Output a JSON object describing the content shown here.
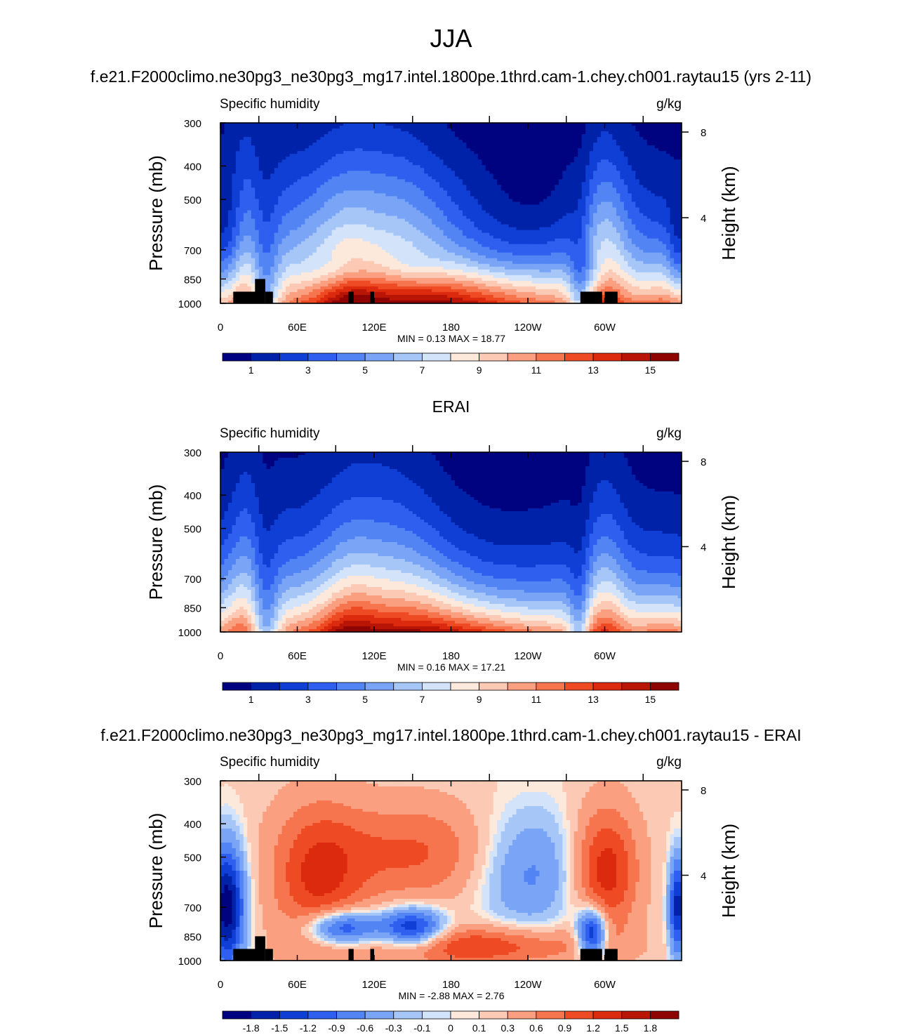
{
  "page": {
    "title": "JJA",
    "panel1_title": "f.e21.F2000climo.ne30pg3_ne30pg3_mg17.intel.1800pe.1thrd.cam-1.chey.ch001.raytau15 (yrs 2-11)",
    "panel2_title": "ERAI",
    "panel3_title": "f.e21.F2000climo.ne30pg3_ne30pg3_mg17.intel.1800pe.1thrd.cam-1.chey.ch001.raytau15 - ERAI"
  },
  "colors": {
    "abs_palette": [
      "#00037f",
      "#0022a9",
      "#0f3fd4",
      "#2f5fee",
      "#5284f3",
      "#7aa5f6",
      "#a7c6f8",
      "#d2e3fa",
      "#fde8dc",
      "#fcc9b4",
      "#fa9f80",
      "#f6754f",
      "#ee4b24",
      "#dc2a0f",
      "#b91507",
      "#8e0400"
    ],
    "diff_palette": [
      "#00037f",
      "#0022a9",
      "#0f3fd4",
      "#2f5fee",
      "#5284f3",
      "#7aa5f6",
      "#a7c6f8",
      "#d2e3fa",
      "#fde8dc",
      "#fcc9b4",
      "#fa9f80",
      "#f6754f",
      "#ee4b24",
      "#dc2a0f",
      "#b91507",
      "#8e0400"
    ]
  },
  "chart_data": [
    {
      "type": "heatmap",
      "title": "f.e21.F2000climo.ne30pg3_ne30pg3_mg17.intel.1800pe.1thrd.cam-1.chey.ch001.raytau15 (yrs 2-11)",
      "left_label": "Specific humidity",
      "right_label": "g/kg",
      "ylabel": "Pressure (mb)",
      "ylabel_right": "Height (km)",
      "x_ticks": [
        "0",
        "60E",
        "120E",
        "180",
        "120W",
        "60W"
      ],
      "y_ticks": [
        "300",
        "400",
        "500",
        "700",
        "850",
        "1000"
      ],
      "y_right_ticks": [
        "8",
        "4"
      ],
      "stats": {
        "min_label": "MIN =",
        "min": "0.13",
        "max_label": "MAX =",
        "max": "18.77"
      },
      "colorbar_labels": [
        "1",
        "3",
        "5",
        "7",
        "9",
        "11",
        "13",
        "15"
      ],
      "field": "model",
      "value_range": [
        0.13,
        18.77
      ]
    },
    {
      "type": "heatmap",
      "title": "ERAI",
      "left_label": "Specific humidity",
      "right_label": "g/kg",
      "ylabel": "Pressure (mb)",
      "ylabel_right": "Height (km)",
      "x_ticks": [
        "0",
        "60E",
        "120E",
        "180",
        "120W",
        "60W"
      ],
      "y_ticks": [
        "300",
        "400",
        "500",
        "700",
        "850",
        "1000"
      ],
      "y_right_ticks": [
        "8",
        "4"
      ],
      "stats": {
        "min_label": "MIN =",
        "min": "0.16",
        "max_label": "MAX =",
        "max": "17.21"
      },
      "colorbar_labels": [
        "1",
        "3",
        "5",
        "7",
        "9",
        "11",
        "13",
        "15"
      ],
      "field": "obs",
      "value_range": [
        0.16,
        17.21
      ]
    },
    {
      "type": "heatmap",
      "title": "f.e21.F2000climo.ne30pg3_ne30pg3_mg17.intel.1800pe.1thrd.cam-1.chey.ch001.raytau15 - ERAI",
      "left_label": "Specific humidity",
      "right_label": "g/kg",
      "ylabel": "Pressure (mb)",
      "ylabel_right": "Height (km)",
      "x_ticks": [
        "0",
        "60E",
        "120E",
        "180",
        "120W",
        "60W"
      ],
      "y_ticks": [
        "300",
        "400",
        "500",
        "700",
        "850",
        "1000"
      ],
      "y_right_ticks": [
        "8",
        "4"
      ],
      "stats": {
        "min_label": "MIN =",
        "min": "-2.88",
        "max_label": "MAX =",
        "max": "2.76"
      },
      "colorbar_labels": [
        "-1.8",
        "-1.5",
        "-1.2",
        "-0.9",
        "-0.6",
        "-0.3",
        "-0.1",
        "0",
        "0.1",
        "0.3",
        "0.6",
        "0.9",
        "1.2",
        "1.5",
        "1.8"
      ],
      "field": "diff",
      "value_range": [
        -2.88,
        2.76
      ]
    }
  ]
}
